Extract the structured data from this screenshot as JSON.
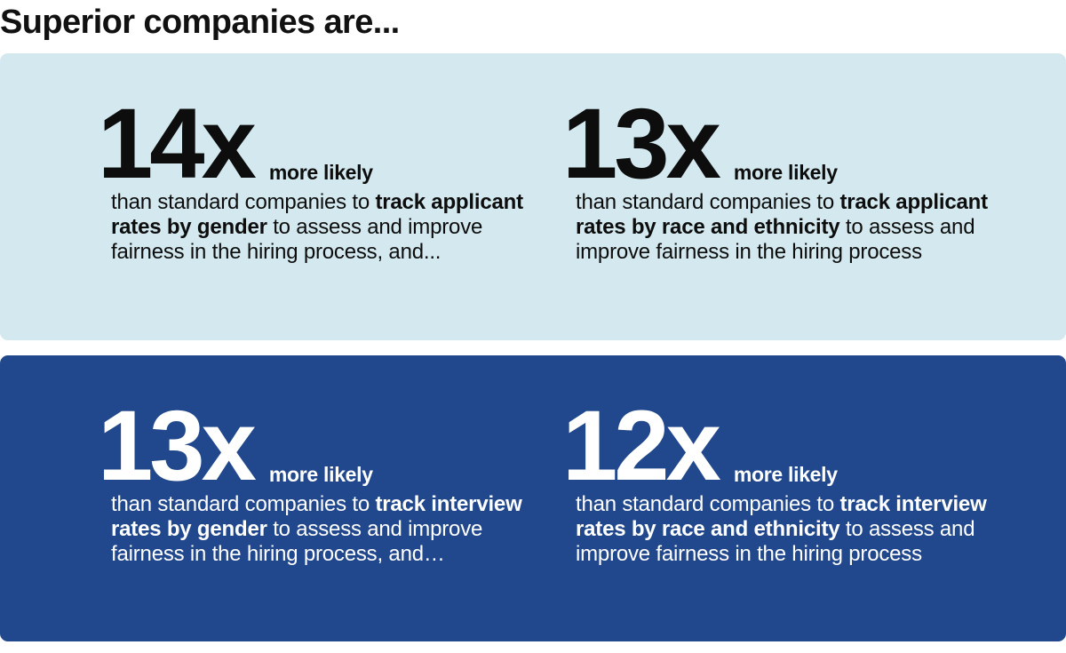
{
  "title": "Superior companies are...",
  "colors": {
    "light_panel_bg": "#d3e9ef",
    "dark_panel_bg": "#21488c",
    "light_text": "#0d0d0d",
    "dark_text": "#ffffff"
  },
  "panels": [
    {
      "theme": "light",
      "stats": [
        {
          "multiplier": "14x",
          "suffix": "more likely",
          "desc_pre": "than standard companies to ",
          "desc_bold": "track applicant rates by gender",
          "desc_post": " to assess and improve fairness in the hiring process, and..."
        },
        {
          "multiplier": "13x",
          "suffix": "more likely",
          "desc_pre": "than standard companies to ",
          "desc_bold": "track applicant rates by race and ethnicity",
          "desc_post": " to assess and improve fairness in the hiring process"
        }
      ]
    },
    {
      "theme": "dark",
      "stats": [
        {
          "multiplier": "13x",
          "suffix": "more likely",
          "desc_pre": "than standard companies to ",
          "desc_bold": "track interview rates by gender",
          "desc_post": " to assess and improve fairness in the hiring process, and…"
        },
        {
          "multiplier": "12x",
          "suffix": "more likely",
          "desc_pre": "than standard companies to ",
          "desc_bold": "track interview rates by race and ethnicity",
          "desc_post": " to assess and improve fairness in the hiring process"
        }
      ]
    }
  ]
}
